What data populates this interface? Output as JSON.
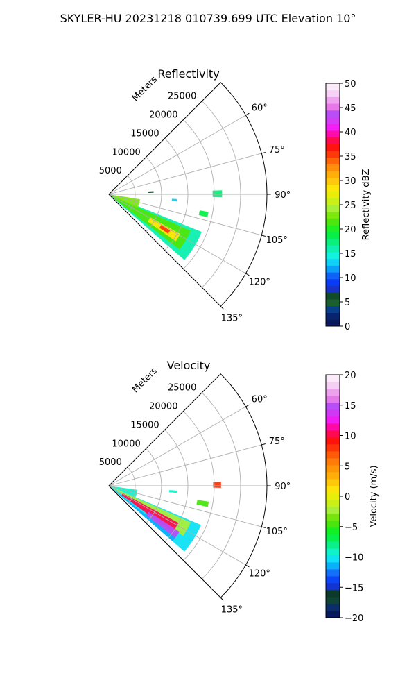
{
  "figure_title": "SKYLER-HU  20231218  010739.699 UTC Elevation 10°",
  "chart_data": [
    {
      "type": "heatmap",
      "subtype": "polar-sector (PPI radar sweep)",
      "title": "Reflectivity",
      "radial_axis_label": "Meters",
      "radial_ticks": [
        5000,
        10000,
        15000,
        20000,
        25000
      ],
      "radial_tick_labels": [
        "5000",
        "10000",
        "15000",
        "20000",
        "25000"
      ],
      "r_max": 30000,
      "theta_range_deg": [
        45,
        135
      ],
      "theta_ticks": [
        60,
        75,
        90,
        105,
        120,
        135
      ],
      "theta_tick_labels": [
        "60°",
        "75°",
        "90°",
        "105°",
        "120°",
        "135°"
      ],
      "grid": true,
      "colorbar": {
        "label": "Reflectivity dBZ",
        "min": 0,
        "max": 50,
        "ticks": [
          0,
          5,
          10,
          15,
          20,
          25,
          30,
          35,
          40,
          45,
          50
        ],
        "tick_labels": [
          "0",
          "5",
          "10",
          "15",
          "20",
          "25",
          "30",
          "35",
          "40",
          "45",
          "50"
        ],
        "colors": [
          "#0b1a5c",
          "#09246e",
          "#083f8a",
          "#1c5f2e",
          "#0f4a2b",
          "#1832c8",
          "#0a3cf5",
          "#0f62f7",
          "#0b9ffa",
          "#0fd0f6",
          "#13f2de",
          "#0df0b0",
          "#0cef7a",
          "#08f048",
          "#1ef024",
          "#4ee60c",
          "#7ce80e",
          "#a6f03a",
          "#c9f01a",
          "#e8ee0a",
          "#ffe60a",
          "#ffc80c",
          "#ffae0a",
          "#ff8e0a",
          "#ff6608",
          "#ff3a0a",
          "#ff1410",
          "#ff0a4a",
          "#ff0cac",
          "#f41ff4",
          "#d43cf6",
          "#b84ef6",
          "#e878ea",
          "#f0a4f0",
          "#f8d2f6",
          "#fbebfa"
        ]
      },
      "data_regions": [
        {
          "name": "main-band-outer",
          "theta_deg": [
            112,
            131
          ],
          "r_m": [
            200,
            19000
          ],
          "dbz": 16
        },
        {
          "name": "main-band-core",
          "theta_deg": [
            114,
            128
          ],
          "r_m": [
            500,
            17000
          ],
          "dbz": 21
        },
        {
          "name": "near-radar-echo",
          "theta_deg": [
            99,
            115
          ],
          "r_m": [
            300,
            6000
          ],
          "dbz": 23
        },
        {
          "name": "inner-bright",
          "theta_deg": [
            119,
            125
          ],
          "r_m": [
            9000,
            15500
          ],
          "dbz": 28
        },
        {
          "name": "core-max",
          "theta_deg": [
            120.5,
            123.5
          ],
          "r_m": [
            11500,
            13500
          ],
          "dbz": 36
        },
        {
          "name": "cell-east",
          "theta_deg": [
            88,
            91.5
          ],
          "r_m": [
            19700,
            21500
          ],
          "dbz": 17
        },
        {
          "name": "cell-southeast",
          "theta_deg": [
            100,
            103
          ],
          "r_m": [
            17500,
            19200
          ],
          "dbz": 19
        },
        {
          "name": "speckle-ne",
          "theta_deg": [
            86,
            88
          ],
          "r_m": [
            7500,
            8500
          ],
          "dbz": 6
        },
        {
          "name": "speckle-e",
          "theta_deg": [
            94,
            96
          ],
          "r_m": [
            12000,
            13000
          ],
          "dbz": 13
        }
      ]
    },
    {
      "type": "heatmap",
      "subtype": "polar-sector (PPI radar sweep)",
      "title": "Velocity",
      "radial_axis_label": "Meters",
      "radial_ticks": [
        5000,
        10000,
        15000,
        20000,
        25000
      ],
      "radial_tick_labels": [
        "5000",
        "10000",
        "15000",
        "20000",
        "25000"
      ],
      "r_max": 30000,
      "theta_range_deg": [
        45,
        135
      ],
      "theta_ticks": [
        60,
        75,
        90,
        105,
        120,
        135
      ],
      "theta_tick_labels": [
        "60°",
        "75°",
        "90°",
        "105°",
        "120°",
        "135°"
      ],
      "grid": true,
      "colorbar": {
        "label": "Velocity (m/s)",
        "min": -20,
        "max": 20,
        "ticks": [
          -20,
          -15,
          -10,
          -5,
          0,
          5,
          10,
          15,
          20
        ],
        "tick_labels": [
          "−20",
          "−15",
          "−10",
          "−5",
          "0",
          "5",
          "10",
          "15",
          "20"
        ],
        "colors": [
          "#081a5e",
          "#0b2d6a",
          "#0f4434",
          "#0c3a2a",
          "#1434d2",
          "#0c45f6",
          "#1370f8",
          "#0ab0fa",
          "#0fe2f4",
          "#10f2c8",
          "#0cf08a",
          "#08f04a",
          "#10f022",
          "#48e60e",
          "#78e40e",
          "#a8ee3c",
          "#caf01a",
          "#e8ee0a",
          "#ffe40a",
          "#ffc80a",
          "#ffae0a",
          "#ff9608",
          "#ff7a08",
          "#ff5a08",
          "#ff340a",
          "#ff120e",
          "#ff0a50",
          "#ff0aa8",
          "#f01cf2",
          "#d038f6",
          "#b84ef6",
          "#e47ae8",
          "#eea2ee",
          "#f6d0f4",
          "#fbebfa"
        ]
      },
      "data_regions": [
        {
          "name": "band-outer",
          "theta_deg": [
            113,
            131
          ],
          "r_m": [
            200,
            19000
          ],
          "ms": -10
        },
        {
          "name": "band-negative",
          "theta_deg": [
            114,
            124
          ],
          "r_m": [
            400,
            17000
          ],
          "ms": -2
        },
        {
          "name": "band-positive",
          "theta_deg": [
            118,
            126
          ],
          "r_m": [
            3000,
            15000
          ],
          "ms": 10
        },
        {
          "name": "band-max-positive",
          "theta_deg": [
            123,
            129
          ],
          "r_m": [
            9000,
            16000
          ],
          "ms": 15
        },
        {
          "name": "near-radar-echo",
          "theta_deg": [
            98,
            113
          ],
          "r_m": [
            300,
            5500
          ],
          "ms": -9
        },
        {
          "name": "edge-strip",
          "theta_deg": [
            128,
            131
          ],
          "r_m": [
            500,
            16000
          ],
          "ms": -12
        },
        {
          "name": "cell-east",
          "theta_deg": [
            88,
            91
          ],
          "r_m": [
            19800,
            21300
          ],
          "ms": 8
        },
        {
          "name": "cell-southeast",
          "theta_deg": [
            99,
            102
          ],
          "r_m": [
            17000,
            19200
          ],
          "ms": -5
        },
        {
          "name": "speckle-e",
          "theta_deg": [
            94,
            96
          ],
          "r_m": [
            11500,
            13000
          ],
          "ms": -9
        }
      ]
    }
  ]
}
